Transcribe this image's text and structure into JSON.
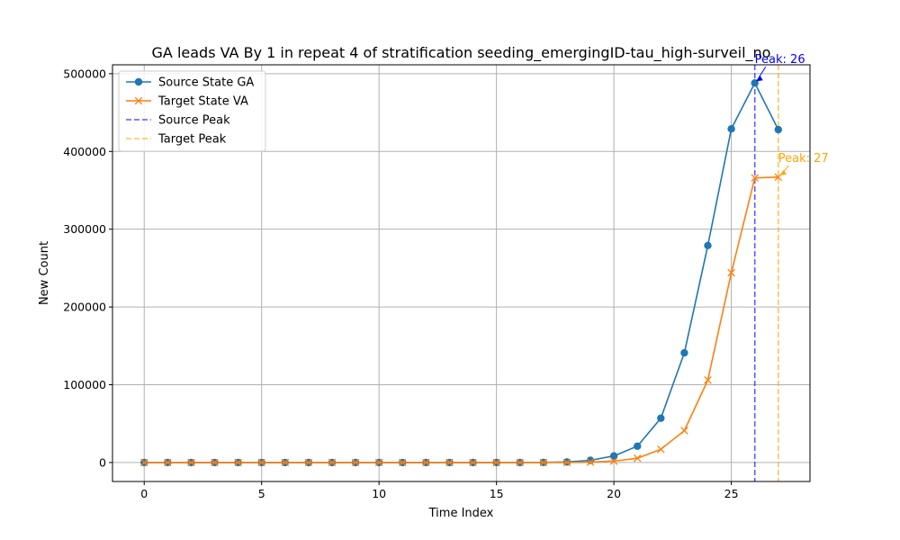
{
  "chart_data": {
    "type": "line",
    "title": "GA leads VA By 1 in repeat 4 of stratification seeding_emergingID-tau_high-surveil_no",
    "xlabel": "Time Index",
    "ylabel": "New Count",
    "xlim": [
      -1.35,
      28.35
    ],
    "ylim": [
      -24400,
      511400
    ],
    "x_ticks": [
      0,
      5,
      10,
      15,
      20,
      25
    ],
    "y_ticks": [
      0,
      100000,
      200000,
      300000,
      400000,
      500000
    ],
    "grid": true,
    "legend_position": "upper-left",
    "x": [
      0,
      1,
      2,
      3,
      4,
      5,
      6,
      7,
      8,
      9,
      10,
      11,
      12,
      13,
      14,
      15,
      16,
      17,
      18,
      19,
      20,
      21,
      22,
      23,
      24,
      25,
      26,
      27
    ],
    "series": [
      {
        "name": "Source State GA",
        "color": "#1f77b4",
        "marker": "circle",
        "values": [
          0,
          0,
          0,
          0,
          0,
          0,
          0,
          0,
          0,
          0,
          0,
          0,
          0,
          0,
          0,
          0,
          0,
          100,
          700,
          2800,
          8500,
          21000,
          57000,
          141000,
          279000,
          429000,
          488000,
          428000
        ]
      },
      {
        "name": "Target State VA",
        "color": "#ff7f0e",
        "marker": "x",
        "values": [
          0,
          0,
          0,
          0,
          0,
          0,
          0,
          0,
          0,
          0,
          0,
          0,
          0,
          0,
          0,
          0,
          0,
          0,
          100,
          500,
          1800,
          5500,
          17000,
          41000,
          106000,
          244000,
          366000,
          367000
        ]
      }
    ],
    "reference_lines": [
      {
        "name": "Source Peak",
        "x": 26,
        "color": "#0000ff",
        "style": "dashed"
      },
      {
        "name": "Target Peak",
        "x": 27,
        "color": "#ffa500",
        "style": "dashed"
      }
    ],
    "annotations": [
      {
        "text": "Peak: 26",
        "x": 26,
        "y": 488000,
        "color": "#0000ff"
      },
      {
        "text": "Peak: 27",
        "x": 27,
        "y": 367000,
        "color": "#ffa500"
      }
    ]
  }
}
